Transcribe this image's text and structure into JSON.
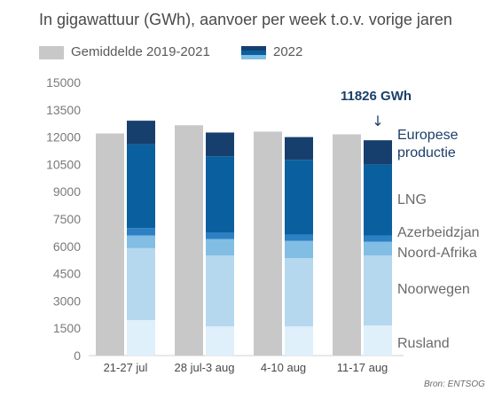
{
  "title": "In gigawattuur (GWh), aanvoer per week t.o.v. vorige jaren",
  "source": "Bron: ENTSOG",
  "legend": {
    "average_label": "Gemiddelde 2019-2021",
    "current_label": "2022"
  },
  "callout": {
    "text": "11826 GWh",
    "arrow": "↓"
  },
  "colors": {
    "average": "#c8c8c8",
    "europese_productie": "#173f6e",
    "lng": "#0a609e",
    "azerbeidzjan": "#2d80c4",
    "noord_afrika": "#82bde4",
    "noorwegen": "#b5d8ef",
    "rusland": "#dff0fa",
    "text_dark": "#1c3f6a",
    "text_gray": "#4a4a4a",
    "tick_gray": "#7a7a7a"
  },
  "chart_data": {
    "type": "bar",
    "categories": [
      "21-27 jul",
      "28 jul-3 aug",
      "4-10 aug",
      "11-17 aug"
    ],
    "ylim": [
      0,
      15000
    ],
    "yticks": [
      0,
      1500,
      3000,
      4500,
      6000,
      7500,
      9000,
      10500,
      12000,
      13500,
      15000
    ],
    "ytick_labels": [
      "0",
      "1500",
      "3000",
      "4500",
      "6000",
      "7500",
      "9000",
      "10500",
      "12000",
      "13500",
      "15000"
    ],
    "series": [
      {
        "name": "Gemiddelde 2019-2021",
        "key": "average",
        "values": [
          12200,
          12650,
          12300,
          12150
        ]
      },
      {
        "name": "Rusland",
        "key": "rusland",
        "stack": "2022",
        "values": [
          1950,
          1600,
          1600,
          1650
        ]
      },
      {
        "name": "Noorwegen",
        "key": "noorwegen",
        "stack": "2022",
        "values": [
          3950,
          3900,
          3750,
          3850
        ]
      },
      {
        "name": "Noord-Afrika",
        "key": "noord_afrika",
        "stack": "2022",
        "values": [
          700,
          900,
          950,
          750
        ]
      },
      {
        "name": "Azerbeidzjan",
        "key": "azerbeidzjan",
        "stack": "2022",
        "values": [
          400,
          350,
          350,
          350
        ]
      },
      {
        "name": "LNG",
        "key": "lng",
        "stack": "2022",
        "values": [
          4600,
          4200,
          4100,
          3900
        ]
      },
      {
        "name": "Europese productie",
        "key": "europese_productie",
        "stack": "2022",
        "values": [
          1300,
          1300,
          1250,
          1326
        ]
      }
    ],
    "series_labels": [
      {
        "key": "europese_productie",
        "lines": [
          "Europese",
          "productie"
        ]
      },
      {
        "key": "lng",
        "lines": [
          "LNG"
        ]
      },
      {
        "key": "azerbeidzjan",
        "lines": [
          "Azerbeidzjan"
        ]
      },
      {
        "key": "noord_afrika",
        "lines": [
          "Noord-Afrika"
        ]
      },
      {
        "key": "noorwegen",
        "lines": [
          "Noorwegen"
        ]
      },
      {
        "key": "rusland",
        "lines": [
          "Rusland"
        ]
      }
    ],
    "total_last_week": 11826
  }
}
